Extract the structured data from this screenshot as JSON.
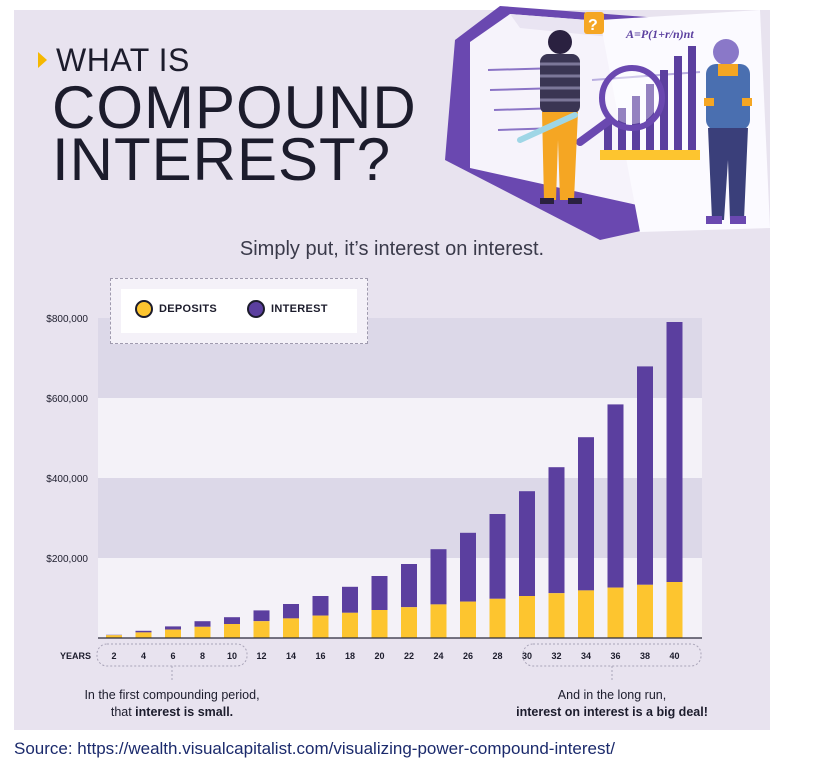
{
  "title": {
    "line1": "WHAT IS",
    "line2": "COMPOUND",
    "line3": "INTEREST?"
  },
  "subtitle": "Simply put, it’s interest on interest.",
  "illustration": {
    "formula": "A=P(1+r/n)nt",
    "question_mark": "?"
  },
  "legend": {
    "deposits": "DEPOSITS",
    "interest": "INTEREST"
  },
  "notes": {
    "left_line1": "In the first compounding period,",
    "left_line2_prefix": "that ",
    "left_line2_bold": "interest is small.",
    "right_line1": "And in the long run,",
    "right_line2_bold": "interest on interest is a big deal!"
  },
  "source": "Source: https://wealth.visualcapitalist.com/visualizing-power-compound-interest/",
  "colors": {
    "deposits": "#fdc52f",
    "interest": "#5b3f9f",
    "band_dark": "#dcd8e8",
    "band_light": "#f4f2f8"
  },
  "chart_data": {
    "type": "bar",
    "stacked": true,
    "xlabel": "YEARS",
    "categories": [
      "2",
      "4",
      "6",
      "8",
      "10",
      "12",
      "14",
      "16",
      "18",
      "20",
      "22",
      "24",
      "26",
      "28",
      "30",
      "32",
      "34",
      "36",
      "38",
      "40"
    ],
    "series": [
      {
        "name": "DEPOSITS",
        "values": [
          7000,
          14000,
          21000,
          28000,
          35000,
          42000,
          49000,
          56000,
          63000,
          70000,
          77000,
          84000,
          91000,
          98000,
          105000,
          112000,
          119000,
          126000,
          133000,
          140000
        ]
      },
      {
        "name": "INTEREST",
        "values": [
          1000,
          4000,
          8000,
          14000,
          17000,
          27000,
          36000,
          49000,
          65000,
          85000,
          108000,
          138000,
          172000,
          212000,
          262000,
          315000,
          383000,
          458000,
          546000,
          650000
        ]
      }
    ],
    "yticks": [
      "$200,000",
      "$400,000",
      "$600,000",
      "$800,000"
    ],
    "ytick_values": [
      200000,
      400000,
      600000,
      800000
    ],
    "ylim": [
      0,
      800000
    ],
    "grid": "alternating bands",
    "legend_position": "top-left"
  }
}
